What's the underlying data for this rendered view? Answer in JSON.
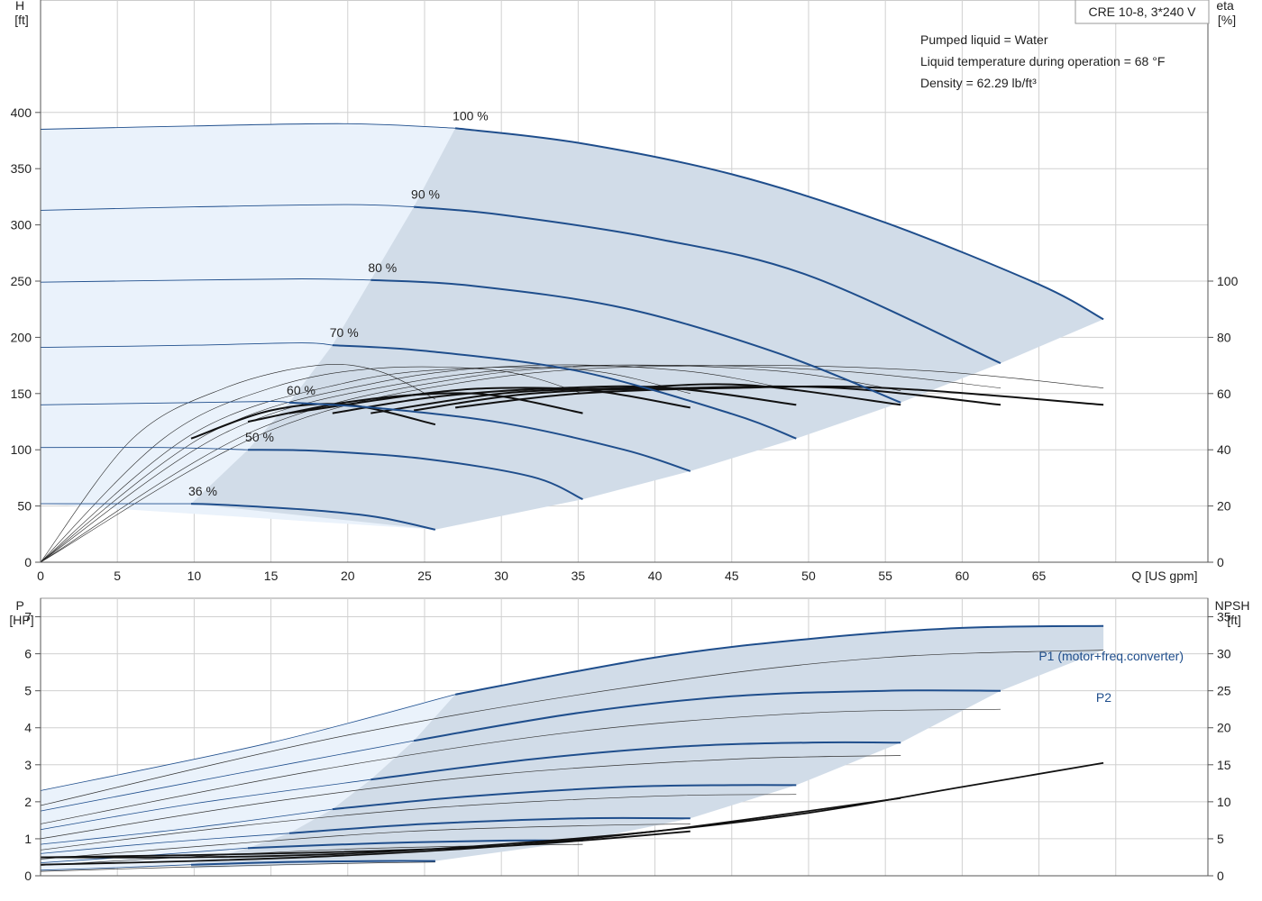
{
  "info_box": {
    "model": "CRE 10-8, 3*240 V",
    "liquid": "Pumped liquid = Water",
    "temperature": "Liquid temperature during operation = 68 °F",
    "density": "Density = 62.29 lb/ft³"
  },
  "colors": {
    "head_curve": "#1f4e8c",
    "efficiency_curve": "#111111",
    "operating_area": "#d1dce8",
    "extended_area": "#eaf2fb",
    "grid": "#d0d0d0"
  },
  "chart_data": [
    {
      "type": "line",
      "name": "head",
      "xlabel": "Q [US gpm]",
      "ylabel": "H [ft]",
      "y2label": "eta [%]",
      "x_ticks": [
        0,
        5,
        10,
        15,
        20,
        25,
        30,
        35,
        40,
        45,
        50,
        55,
        60,
        65
      ],
      "y_ticks": [
        0,
        50,
        100,
        150,
        200,
        250,
        300,
        350,
        400
      ],
      "y2_ticks": [
        0,
        20,
        40,
        60,
        80,
        100
      ],
      "xlim": [
        0,
        76
      ],
      "ylim": [
        0,
        500
      ],
      "y2lim": [
        0,
        200
      ],
      "grid": true,
      "speed_curves": [
        {
          "label": "100 %",
          "x": [
            0,
            10,
            20,
            27,
            35,
            45,
            55,
            65,
            69.2
          ],
          "y": [
            385,
            388,
            390,
            386,
            373,
            345,
            302,
            247,
            216
          ]
        },
        {
          "label": "90 %",
          "x": [
            0,
            10,
            20,
            24.3,
            30,
            40,
            50,
            62.5
          ],
          "y": [
            313,
            316,
            318,
            316,
            309,
            288,
            255,
            177
          ]
        },
        {
          "label": "80 %",
          "x": [
            0,
            10,
            17,
            21.5,
            28,
            38,
            48,
            56
          ],
          "y": [
            249,
            251,
            252,
            251,
            246,
            226,
            186,
            142
          ]
        },
        {
          "label": "70 %",
          "x": [
            0,
            10,
            17,
            19,
            25,
            35,
            45,
            49.2
          ],
          "y": [
            191,
            193,
            195,
            193,
            188,
            170,
            132,
            110
          ]
        },
        {
          "label": "60 %",
          "x": [
            0,
            10,
            15,
            16.2,
            22,
            30,
            38,
            42.3
          ],
          "y": [
            140,
            142,
            143,
            142,
            137,
            124,
            100,
            81
          ]
        },
        {
          "label": "50 %",
          "x": [
            0,
            8,
            13.5,
            18,
            25,
            32,
            35.3
          ],
          "y": [
            102,
            102,
            100,
            99,
            92,
            76,
            56
          ]
        },
        {
          "label": "36 %",
          "x": [
            0,
            9.8,
            12,
            18,
            22,
            25.7
          ],
          "y": [
            52,
            52,
            51,
            46,
            40,
            29
          ]
        }
      ],
      "efficiency_curves": [
        {
          "x": [
            9.8,
            15,
            20,
            25.7
          ],
          "y": [
            44,
            54,
            56,
            49
          ]
        },
        {
          "x": [
            13.5,
            20,
            26,
            30,
            35.3
          ],
          "y": [
            50,
            57,
            60,
            59,
            53
          ]
        },
        {
          "x": [
            16.2,
            25,
            30,
            36,
            42.3
          ],
          "y": [
            53,
            60,
            62,
            61,
            55
          ]
        },
        {
          "x": [
            19,
            26,
            34,
            41,
            49.2
          ],
          "y": [
            53,
            59,
            62,
            62,
            56
          ]
        },
        {
          "x": [
            21.5,
            30,
            38,
            46,
            56
          ],
          "y": [
            53,
            60,
            62,
            63,
            56
          ]
        },
        {
          "x": [
            24.3,
            32,
            42,
            52,
            62.5
          ],
          "y": [
            54,
            60,
            62,
            62,
            56
          ]
        },
        {
          "x": [
            27,
            35,
            45,
            55,
            69.2
          ],
          "y": [
            55,
            60,
            62,
            62,
            56
          ]
        }
      ],
      "thin_efficiency_curves": [
        {
          "x": [
            0,
            6,
            12,
            18,
            22,
            25.7
          ],
          "y": [
            0,
            44,
            62,
            70,
            68,
            58
          ]
        },
        {
          "x": [
            0,
            8,
            15,
            22,
            30,
            35.3
          ],
          "y": [
            0,
            44,
            62,
            69,
            68,
            60
          ]
        },
        {
          "x": [
            0,
            10,
            20,
            28,
            36,
            42.3
          ],
          "y": [
            0,
            46,
            64,
            69,
            68,
            60
          ]
        },
        {
          "x": [
            0,
            11,
            22,
            32,
            42,
            49.2
          ],
          "y": [
            0,
            46,
            64,
            70,
            68,
            61
          ]
        },
        {
          "x": [
            0,
            12,
            24,
            36,
            48,
            56
          ],
          "y": [
            0,
            46,
            64,
            70,
            68,
            61
          ]
        },
        {
          "x": [
            0,
            14,
            28,
            40,
            52,
            62.5
          ],
          "y": [
            0,
            47,
            66,
            70,
            68,
            62
          ]
        },
        {
          "x": [
            0,
            15,
            30,
            45,
            58,
            69.2
          ],
          "y": [
            0,
            47,
            66,
            70,
            68,
            62
          ]
        }
      ]
    },
    {
      "type": "line",
      "name": "power",
      "ylabel": "P [HP]",
      "y2label": "NPSH [ft]",
      "x_ticks": [
        0,
        5,
        10,
        15,
        20,
        25,
        30,
        35,
        40,
        45,
        50,
        55,
        60,
        65
      ],
      "y_ticks": [
        0,
        1,
        2,
        3,
        4,
        5,
        6,
        7
      ],
      "y2_ticks": [
        0,
        5,
        10,
        15,
        20,
        25,
        30,
        35
      ],
      "xlim": [
        0,
        76
      ],
      "ylim": [
        0,
        7.5
      ],
      "y2lim": [
        0,
        37.5
      ],
      "grid": true,
      "series_labels": [
        "P1 (motor+freq.converter)",
        "P2"
      ],
      "p1_curves": [
        {
          "x": [
            0,
            15,
            27,
            40,
            50,
            60,
            69.2
          ],
          "y": [
            2.3,
            3.6,
            4.9,
            5.9,
            6.4,
            6.7,
            6.75
          ]
        },
        {
          "x": [
            0,
            12,
            24.3,
            35,
            45,
            55,
            62.5
          ],
          "y": [
            1.75,
            2.7,
            3.65,
            4.4,
            4.85,
            5.0,
            5.0
          ]
        },
        {
          "x": [
            0,
            10,
            21.5,
            32,
            42,
            50,
            56
          ],
          "y": [
            1.25,
            1.95,
            2.6,
            3.15,
            3.5,
            3.6,
            3.6
          ]
        },
        {
          "x": [
            0,
            10,
            19,
            28,
            38,
            45,
            49.2
          ],
          "y": [
            0.85,
            1.3,
            1.8,
            2.15,
            2.4,
            2.45,
            2.45
          ]
        },
        {
          "x": [
            0,
            8,
            16.2,
            25,
            35,
            42.3
          ],
          "y": [
            0.6,
            0.9,
            1.15,
            1.4,
            1.55,
            1.55
          ]
        },
        {
          "x": [
            0,
            7,
            13.5,
            22,
            30,
            35.3
          ],
          "y": [
            0.35,
            0.55,
            0.75,
            0.88,
            0.95,
            0.95
          ]
        },
        {
          "x": [
            0,
            5,
            9.8,
            16,
            22,
            25.7
          ],
          "y": [
            0.15,
            0.22,
            0.3,
            0.37,
            0.4,
            0.4
          ]
        }
      ],
      "p2_curves": [
        {
          "x": [
            0,
            20,
            40,
            55,
            69.2
          ],
          "y": [
            1.9,
            3.8,
            5.2,
            5.9,
            6.1
          ]
        },
        {
          "x": [
            0,
            18,
            35,
            50,
            62.5
          ],
          "y": [
            1.4,
            2.85,
            3.9,
            4.4,
            4.5
          ]
        },
        {
          "x": [
            0,
            15,
            30,
            45,
            56
          ],
          "y": [
            1.0,
            2.0,
            2.75,
            3.15,
            3.25
          ]
        },
        {
          "x": [
            0,
            13,
            26,
            40,
            49.2
          ],
          "y": [
            0.7,
            1.35,
            1.85,
            2.15,
            2.2
          ]
        },
        {
          "x": [
            0,
            12,
            24,
            35,
            42.3
          ],
          "y": [
            0.45,
            0.85,
            1.2,
            1.35,
            1.4
          ]
        },
        {
          "x": [
            0,
            10,
            20,
            30,
            35.3
          ],
          "y": [
            0.28,
            0.52,
            0.72,
            0.82,
            0.85
          ]
        },
        {
          "x": [
            0,
            8,
            16,
            22,
            25.7
          ],
          "y": [
            0.12,
            0.22,
            0.3,
            0.35,
            0.37
          ]
        }
      ],
      "npsh_curves": [
        {
          "x": [
            0,
            10,
            20,
            30,
            40,
            50,
            60,
            69.2
          ],
          "y": [
            0.5,
            0.5,
            0.6,
            0.85,
            1.2,
            1.7,
            2.4,
            3.05
          ]
        },
        {
          "x": [
            0,
            10,
            20,
            30,
            40,
            50,
            56
          ],
          "y": [
            0.3,
            0.4,
            0.55,
            0.8,
            1.2,
            1.75,
            2.1
          ]
        },
        {
          "x": [
            0,
            15,
            30,
            42.3
          ],
          "y": [
            0.5,
            0.6,
            0.8,
            1.2
          ]
        }
      ]
    }
  ]
}
